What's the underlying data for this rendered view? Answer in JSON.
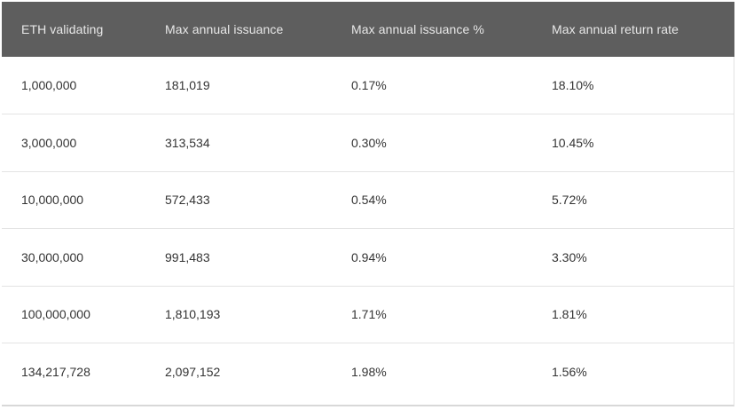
{
  "table": {
    "headers": [
      "ETH validating",
      "Max annual issuance",
      "Max annual issuance %",
      "Max annual return rate"
    ],
    "rows": [
      [
        "1,000,000",
        "181,019",
        "0.17%",
        "18.10%"
      ],
      [
        "3,000,000",
        "313,534",
        "0.30%",
        "10.45%"
      ],
      [
        "10,000,000",
        "572,433",
        "0.54%",
        "5.72%"
      ],
      [
        "30,000,000",
        "991,483",
        "0.94%",
        "3.30%"
      ],
      [
        "100,000,000",
        "1,810,193",
        "1.71%",
        "1.81%"
      ],
      [
        "134,217,728",
        "2,097,152",
        "1.98%",
        "1.56%"
      ]
    ]
  },
  "colors": {
    "header_bg": "#5e5e5e",
    "header_text": "#e8e8e8",
    "row_divider": "#e3e3e3"
  }
}
